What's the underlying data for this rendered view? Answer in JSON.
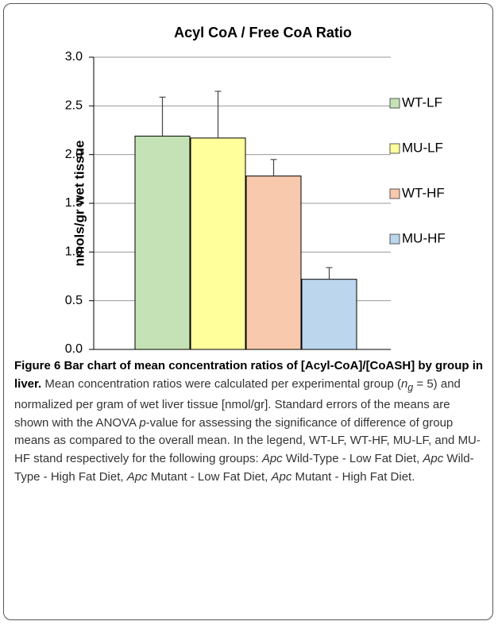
{
  "chart_data": {
    "type": "bar",
    "title": "Acyl CoA / Free CoA Ratio",
    "ylabel": "nmols/gr wet tissue",
    "ylim": [
      0,
      3
    ],
    "yticks": [
      {
        "value": 0,
        "label": "0.0"
      },
      {
        "value": 0.5,
        "label": "0.5"
      },
      {
        "value": 1,
        "label": "1.0"
      },
      {
        "value": 1.5,
        "label": "1.5"
      },
      {
        "value": 2,
        "label": "2.0"
      },
      {
        "value": 2.5,
        "label": "2.5"
      },
      {
        "value": 3,
        "label": "3.0"
      }
    ],
    "grid": true,
    "legend": "right",
    "series": [
      {
        "name": "WT-LF",
        "color": "#c4e2b6",
        "values": [
          2.19
        ],
        "errors": [
          0.4
        ]
      },
      {
        "name": "MU-LF",
        "color": "#ffff9c",
        "values": [
          2.17
        ],
        "errors": [
          0.48
        ]
      },
      {
        "name": "WT-HF",
        "color": "#f8c9ad",
        "values": [
          1.78
        ],
        "errors": [
          0.17
        ]
      },
      {
        "name": "MU-HF",
        "color": "#bcd6ee",
        "values": [
          0.72
        ],
        "errors": [
          0.12
        ]
      }
    ]
  },
  "caption": {
    "title": "Figure 6 Bar chart of mean concentration ratios of [Acyl-CoA]/[CoASH] by group in liver.",
    "segments": [
      "Mean concentration ratios were calculated per experimental group (",
      "n",
      "g",
      " = 5) and normalized per gram of wet liver tissue [nmol/gr]. Standard errors of the means are shown with the ANOVA ",
      "p",
      "-value for assessing the significance of difference of group means as compared to the overall mean. In the legend, WT-LF, WT-HF, MU-LF, and MU-HF stand respectively for the following groups: ",
      "Apc",
      " Wild-Type - Low Fat Diet, ",
      "Apc",
      " Wild-Type - High Fat Diet, ",
      "Apc",
      " Mutant - Low Fat Diet, ",
      "Apc",
      " Mutant - High Fat Diet."
    ]
  }
}
